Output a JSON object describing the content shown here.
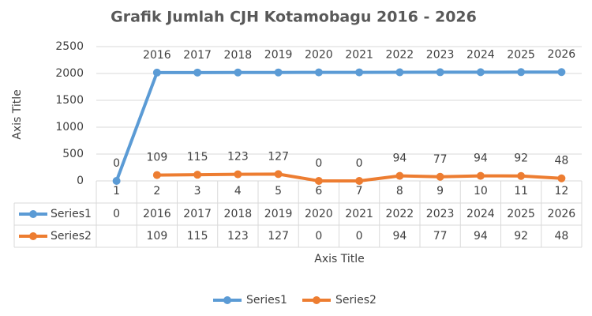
{
  "chart_data": {
    "type": "line",
    "title": "Grafik Jumlah CJH Kotamobagu 2016 - 2026",
    "x_axis_title": "Axis Title",
    "y_axis_title": "Axis Title",
    "categories": [
      "1",
      "2",
      "3",
      "4",
      "5",
      "6",
      "7",
      "8",
      "9",
      "10",
      "11",
      "12"
    ],
    "series": [
      {
        "name": "Series1",
        "color": "#5b9bd5",
        "values": [
          0,
          2016,
          2017,
          2018,
          2019,
          2020,
          2021,
          2022,
          2023,
          2024,
          2025,
          2026
        ]
      },
      {
        "name": "Series2",
        "color": "#ed7d31",
        "values": [
          null,
          109,
          115,
          123,
          127,
          0,
          0,
          94,
          77,
          94,
          92,
          48
        ]
      }
    ],
    "ylim": [
      0,
      2500
    ],
    "yticks": [
      0,
      500,
      1000,
      1500,
      2000,
      2500
    ],
    "grid": true,
    "data_labels": true,
    "data_table": true,
    "legend": "bottom"
  }
}
